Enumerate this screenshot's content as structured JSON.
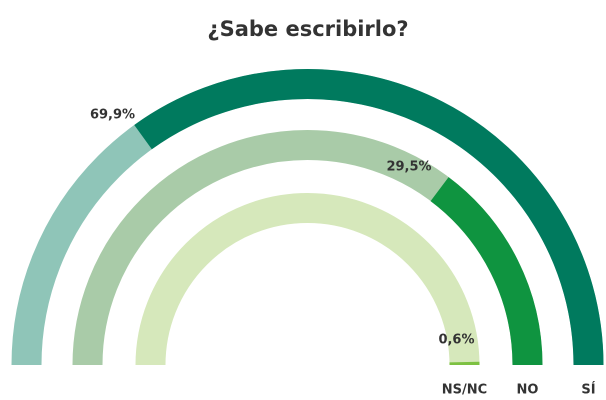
{
  "chart_data": {
    "type": "radial_bar",
    "title": "¿Sabe escribirlo?",
    "categories": [
      "SÍ",
      "NO",
      "NS/NC"
    ],
    "values": [
      69.9,
      29.5,
      0.6
    ],
    "value_labels": [
      "69,9%",
      "29,5%",
      "0,6%"
    ],
    "colors": [
      "#007a5e",
      "#0f9440",
      "#7dc142"
    ],
    "track_colors": [
      "#8fc5b8",
      "#a9cba8",
      "#d6e8bb"
    ],
    "ylim": [
      0,
      100
    ]
  }
}
